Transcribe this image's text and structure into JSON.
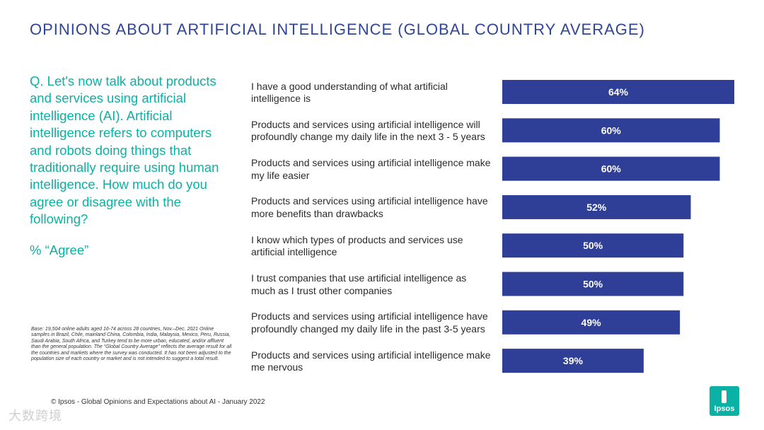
{
  "title": "OPINIONS ABOUT ARTIFICIAL INTELLIGENCE (GLOBAL COUNTRY AVERAGE)",
  "question": "Q. Let's now talk about products and services using artificial intelligence (AI). Artificial intelligence refers to computers and robots doing things that traditionally require using human intelligence. How much do you agree or disagree with the following?",
  "agree_label": "% “Agree”",
  "base_note": "Base: 19,504 online adults aged 16-74 across 28 countries, Nov.–Dec. 2021 Online samples in Brazil, Chile, mainland China, Colombia, India, Malaysia, Mexico, Peru, Russia, Saudi Arabia, South Africa, and Turkey tend to be more urban, educated, and/or affluent than the general population. The “Global  Country Average” reflects the average result for all the countries and markets where the survey was conducted. It has not been adjusted to the population size of each country or market and is not intended to suggest a total result.",
  "footer": "© Ipsos - Global Opinions and Expectations about AI - January 2022",
  "watermark": "大数跨境",
  "logo_text": "Ipsos",
  "colors": {
    "title": "#2f4598",
    "accent": "#0ab1a4",
    "bar": "#2f3f98"
  },
  "chart_data": {
    "type": "bar",
    "orientation": "horizontal",
    "title": "",
    "xlabel": "",
    "ylabel": "",
    "xlim": [
      0,
      64
    ],
    "grid": false,
    "categories": [
      "I have a good understanding of what artificial intelligence is",
      "Products and services using artificial intelligence will profoundly change my daily life in the next 3 - 5 years",
      "Products and services using artificial intelligence make my life easier",
      "Products and services using artificial intelligence have more benefits than drawbacks",
      "I know which types of products and services use artificial intelligence",
      "I trust companies that use artificial intelligence as much as I trust other companies",
      "Products and services using artificial intelligence have profoundly changed my daily life in the past 3-5 years",
      "Products and services using artificial intelligence make me nervous"
    ],
    "values": [
      64,
      60,
      60,
      52,
      50,
      50,
      49,
      39
    ],
    "value_labels": [
      "64%",
      "60%",
      "60%",
      "52%",
      "50%",
      "50%",
      "49%",
      "39%"
    ]
  }
}
